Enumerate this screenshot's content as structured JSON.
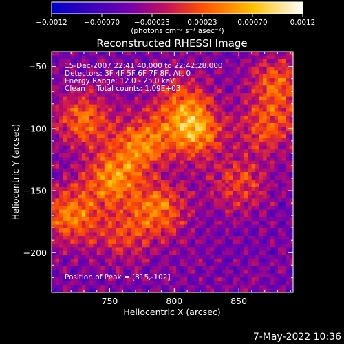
{
  "chart_data": {
    "type": "heatmap",
    "title": "Reconstructed RHESSI Image",
    "xlabel": "Heliocentric X (arcsec)",
    "ylabel": "Heliocentric Y (arcsec)",
    "xlim": [
      705,
      892
    ],
    "ylim": [
      -232,
      -38
    ],
    "x_ticks": [
      750,
      800,
      850
    ],
    "y_ticks": [
      -50,
      -100,
      -150,
      -200
    ],
    "x_tick_labels": [
      "750",
      "800",
      "850"
    ],
    "y_tick_labels": [
      "−50",
      "−100",
      "−150",
      "−200"
    ],
    "colorbar": {
      "range": [
        -0.0012,
        0.0012
      ],
      "tick_labels": [
        "−0.0012",
        "−0.00070",
        "−0.00023",
        "0.00023",
        "0.00070",
        "0.0012"
      ],
      "units_text": "(photons cm⁻² s⁻¹ asec⁻²)",
      "colors": [
        "#0000c8",
        "#7000b0",
        "#c01060",
        "#ff5000",
        "#ffc000",
        "#ffffff"
      ]
    },
    "info_lines": [
      "15-Dec-2007 22:41:40.000 to 22:42:28.000",
      "Detectors: 3F 4F 5F 6F 7F 8F, Att 0",
      "Energy Range: 12.0 - 25.0 keV",
      "Clean     Total counts: 1.09E+03"
    ],
    "peak_label": "Position of Peak = [815,-102]",
    "peak_position": [
      815,
      -102
    ],
    "total_counts": 1090,
    "energy_range_kev": [
      12.0,
      25.0
    ],
    "sources": [
      {
        "x": 815,
        "y": -102,
        "amp": 1.0
      },
      {
        "x": 775,
        "y": -112,
        "amp": 0.85
      },
      {
        "x": 752,
        "y": -140,
        "amp": 0.9
      },
      {
        "x": 788,
        "y": -165,
        "amp": 0.8
      },
      {
        "x": 730,
        "y": -92,
        "amp": 0.75
      },
      {
        "x": 720,
        "y": -170,
        "amp": 0.85
      },
      {
        "x": 880,
        "y": -65,
        "amp": 0.7
      },
      {
        "x": 872,
        "y": -100,
        "amp": 0.6
      },
      {
        "x": 850,
        "y": -145,
        "amp": 0.55
      },
      {
        "x": 760,
        "y": -185,
        "amp": 0.5
      },
      {
        "x": 805,
        "y": -80,
        "amp": 0.55
      }
    ]
  },
  "footer": {
    "timestamp": "7-May-2022 10:36"
  }
}
